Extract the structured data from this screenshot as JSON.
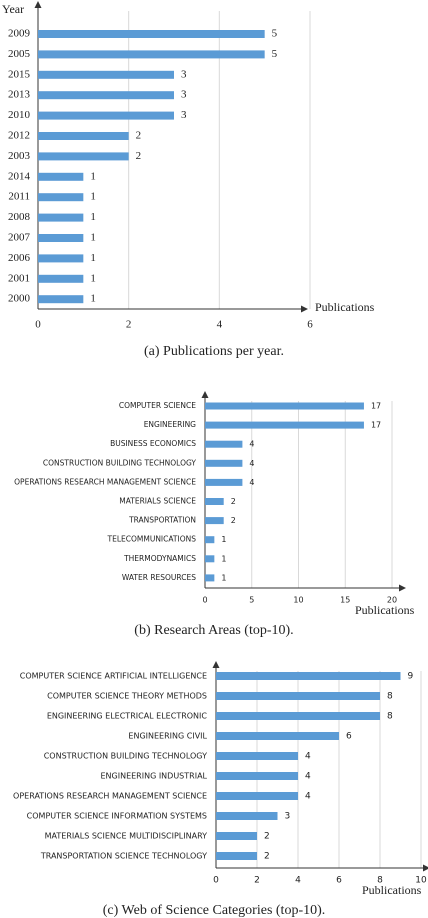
{
  "chart_data": [
    {
      "type": "barh",
      "caption": "(a) Publications per year.",
      "y_label": "Year",
      "x_label": "Publications",
      "categories": [
        "2009",
        "2005",
        "2015",
        "2013",
        "2010",
        "2012",
        "2003",
        "2014",
        "2011",
        "2008",
        "2007",
        "2006",
        "2001",
        "2000"
      ],
      "values": [
        5,
        5,
        3,
        3,
        3,
        2,
        2,
        1,
        1,
        1,
        1,
        1,
        1,
        1
      ],
      "color": "#5b9bd5",
      "xlim": [
        0,
        6
      ],
      "xticks": [
        0,
        2,
        4,
        6
      ],
      "grid": true
    },
    {
      "type": "barh",
      "caption": "(b) Research Areas (top-10).",
      "x_label": "Publications",
      "categories": [
        "COMPUTER SCIENCE",
        "ENGINEERING",
        "BUSINESS ECONOMICS",
        "CONSTRUCTION BUILDING TECHNOLOGY",
        "OPERATIONS RESEARCH MANAGEMENT SCIENCE",
        "MATERIALS SCIENCE",
        "TRANSPORTATION",
        "TELECOMMUNICATIONS",
        "THERMODYNAMICS",
        "WATER RESOURCES"
      ],
      "values": [
        17,
        17,
        4,
        4,
        4,
        2,
        2,
        1,
        1,
        1
      ],
      "color": "#5b9bd5",
      "xlim": [
        0,
        20
      ],
      "xticks": [
        0,
        5,
        10,
        15,
        20
      ],
      "grid": true
    },
    {
      "type": "barh",
      "caption": "(c) Web of Science Categories (top-10).",
      "x_label": "Publications",
      "categories": [
        "COMPUTER SCIENCE ARTIFICIAL INTELLIGENCE",
        "COMPUTER SCIENCE THEORY METHODS",
        "ENGINEERING ELECTRICAL ELECTRONIC",
        "ENGINEERING CIVIL",
        "CONSTRUCTION BUILDING TECHNOLOGY",
        "ENGINEERING INDUSTRIAL",
        "OPERATIONS RESEARCH MANAGEMENT SCIENCE",
        "COMPUTER SCIENCE INFORMATION SYSTEMS",
        "MATERIALS SCIENCE MULTIDISCIPLINARY",
        "TRANSPORTATION SCIENCE TECHNOLOGY"
      ],
      "values": [
        9,
        8,
        8,
        6,
        4,
        4,
        4,
        3,
        2,
        2
      ],
      "color": "#5b9bd5",
      "xlim": [
        0,
        10
      ],
      "xticks": [
        0,
        2,
        4,
        6,
        8,
        10
      ],
      "grid": true
    }
  ]
}
